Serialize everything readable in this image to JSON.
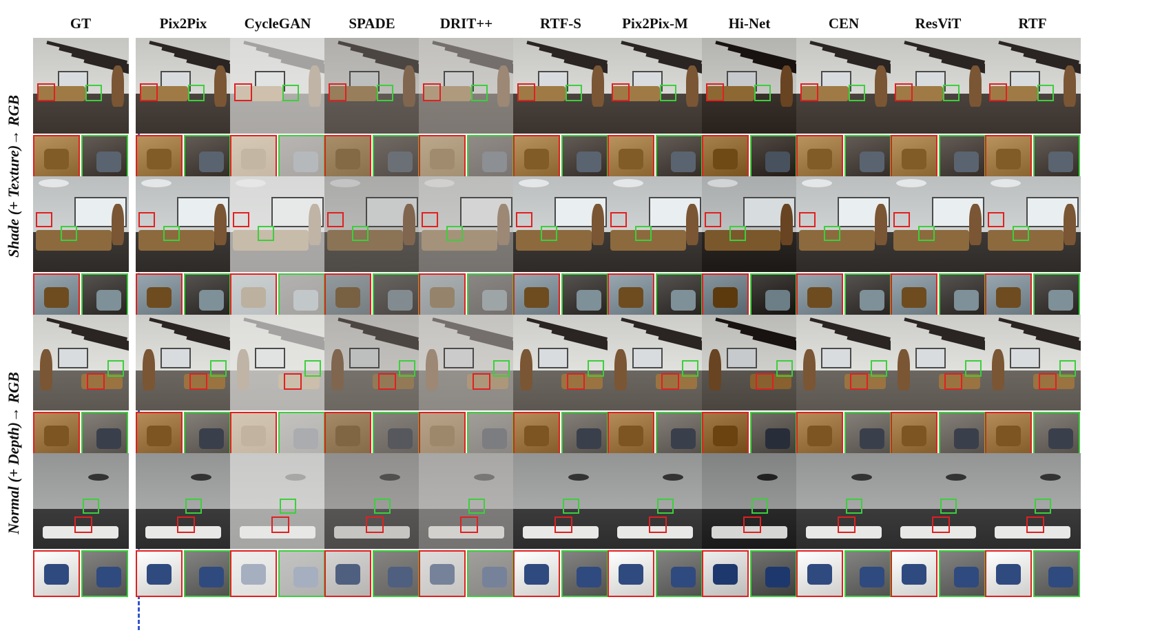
{
  "columns": [
    "GT",
    "Pix2Pix",
    "CycleGAN",
    "SPADE",
    "DRIT++",
    "RTF-S",
    "Pix2Pix-M",
    "Hi-Net",
    "CEN",
    "ResViT",
    "RTF"
  ],
  "row_groups": [
    {
      "label": "Shade (+ Texture)→ RGB"
    },
    {
      "label": "Normal (+ Depth)→ RGB"
    }
  ],
  "colors": {
    "red_box": "#e02020",
    "green_box": "#3ccf3c",
    "divider": "#3355cc"
  },
  "rows": [
    {
      "scene": "living-room-beams",
      "wall": "#d9d9d6",
      "floor": "#4a423c",
      "sofa": "#a07a45",
      "accent": "#5a6470"
    },
    {
      "scene": "living-room-window",
      "wall": "#cfd2d2",
      "floor": "#3d3936",
      "sofa": "#8c6a3e",
      "accent": "#7e9098"
    },
    {
      "scene": "stairs-lounge",
      "wall": "#e0e0dc",
      "floor": "#6b6660",
      "sofa": "#9a7340",
      "accent": "#3a3f4c"
    },
    {
      "scene": "dark-lounge-fan",
      "wall": "#a7a8a8",
      "floor": "#3b3b3c",
      "sofa": "#e8e8e6",
      "accent": "#2f4a7e"
    }
  ],
  "method_styles": [
    {
      "tint": "none"
    },
    {
      "tint": "none"
    },
    {
      "tint": "washed"
    },
    {
      "tint": "blurry"
    },
    {
      "tint": "flat"
    },
    {
      "tint": "none"
    },
    {
      "tint": "none"
    },
    {
      "tint": "dim"
    },
    {
      "tint": "none"
    },
    {
      "tint": "none"
    },
    {
      "tint": "none"
    }
  ]
}
